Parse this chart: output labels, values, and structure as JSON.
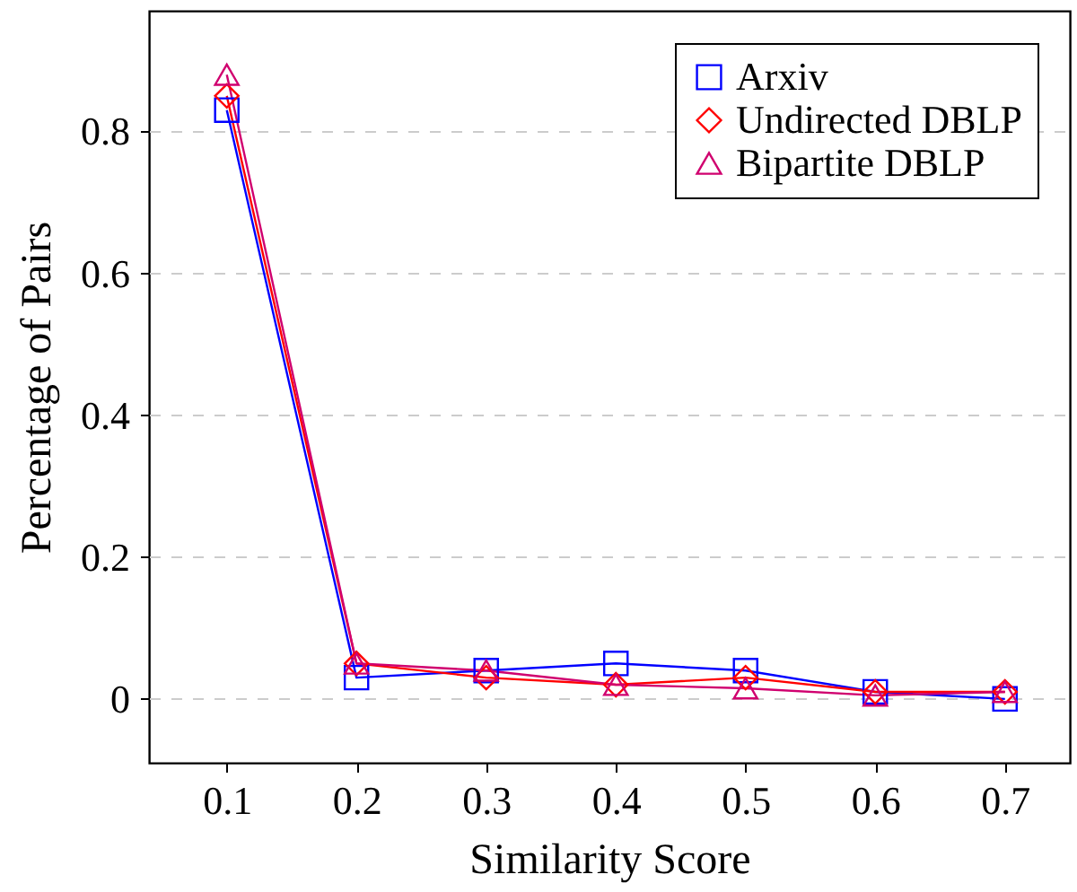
{
  "chart_data": {
    "type": "line",
    "xlabel": "Similarity Score",
    "ylabel": "Percentage of Pairs",
    "x": [
      0.1,
      0.2,
      0.3,
      0.4,
      0.5,
      0.6,
      0.7
    ],
    "series": [
      {
        "name": "Arxiv",
        "color": "#0000ff",
        "marker": "square",
        "values": [
          0.83,
          0.03,
          0.04,
          0.05,
          0.04,
          0.01,
          0.0
        ]
      },
      {
        "name": "Undirected DBLP",
        "color": "#ff0000",
        "marker": "diamond",
        "values": [
          0.85,
          0.05,
          0.03,
          0.02,
          0.03,
          0.01,
          0.01
        ]
      },
      {
        "name": "Bipartite DBLP",
        "color": "#d0006f",
        "marker": "triangle",
        "values": [
          0.88,
          0.05,
          0.04,
          0.02,
          0.015,
          0.005,
          0.01
        ]
      }
    ],
    "xlim": [
      0.04,
      0.75
    ],
    "xticks": [
      0.1,
      0.2,
      0.3,
      0.4,
      0.5,
      0.6,
      0.7
    ],
    "ylim": [
      -0.09,
      0.97
    ],
    "yticks": [
      0,
      0.2,
      0.4,
      0.6,
      0.8
    ],
    "grid": "y",
    "legend": "top right",
    "line_style": "solid"
  }
}
